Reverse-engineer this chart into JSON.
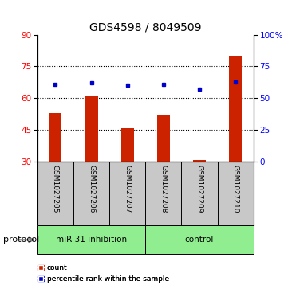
{
  "title": "GDS4598 / 8049509",
  "samples": [
    "GSM1027205",
    "GSM1027206",
    "GSM1027207",
    "GSM1027208",
    "GSM1027209",
    "GSM1027210"
  ],
  "counts": [
    53,
    61,
    46,
    52,
    31,
    80
  ],
  "count_base": 30,
  "percentile_ranks": [
    61,
    62,
    60,
    61,
    57,
    63
  ],
  "groups": [
    {
      "label": "miR-31 inhibition",
      "n": 3
    },
    {
      "label": "control",
      "n": 3
    }
  ],
  "left_ylim": [
    30,
    90
  ],
  "left_yticks": [
    30,
    45,
    60,
    75,
    90
  ],
  "right_ylim": [
    0,
    100
  ],
  "right_yticks": [
    0,
    25,
    50,
    75,
    100
  ],
  "right_yticklabels": [
    "0",
    "25",
    "50",
    "75",
    "100%"
  ],
  "bar_color": "#CC2200",
  "dot_color": "#0000CC",
  "bar_width": 0.35,
  "hline_values": [
    45,
    60,
    75
  ],
  "green": "#90EE90",
  "gray": "#C8C8C8",
  "protocol_label": "protocol",
  "legend_count_label": "count",
  "legend_percentile_label": "percentile rank within the sample",
  "title_fontsize": 10,
  "tick_fontsize": 7.5,
  "sample_label_fontsize": 6.5
}
